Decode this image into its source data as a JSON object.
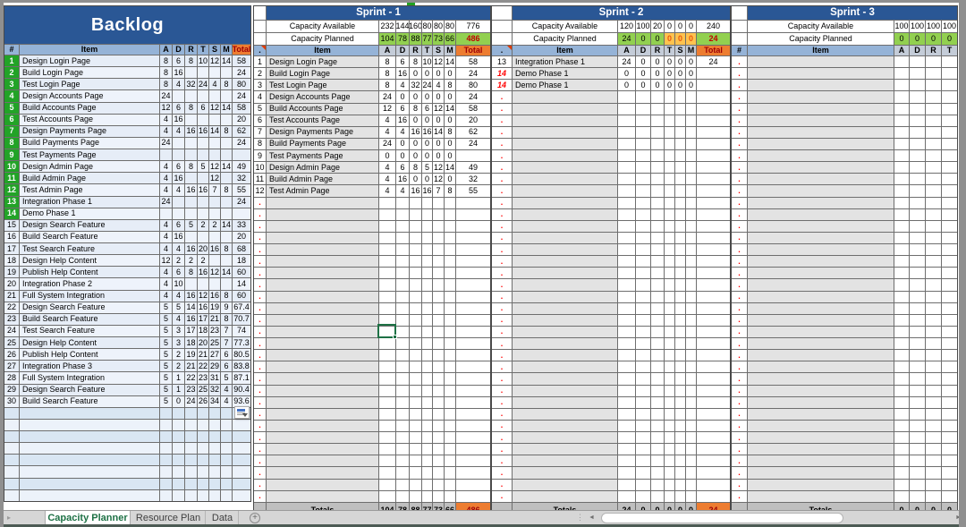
{
  "colors": {
    "header_blue": "#2a5795",
    "column_header_blue": "#95b3d7",
    "total_orange": "#ed7d31",
    "planned_green": "#92d050",
    "warning_amber": "#ffc34f",
    "row_number_green": "#22a327",
    "selection_green": "#1e7145",
    "dot_red": "#ff0000",
    "totals_grey": "#bfbfbf"
  },
  "backlog": {
    "title": "Backlog",
    "columns": [
      "#",
      "Item",
      "A",
      "D",
      "R",
      "T",
      "S",
      "M",
      "Total"
    ],
    "rows": [
      {
        "n": "1",
        "item": "Design Login Page",
        "v": [
          "8",
          "6",
          "8",
          "10",
          "12",
          "14"
        ],
        "t": "58",
        "g": true
      },
      {
        "n": "2",
        "item": "Build Login Page",
        "v": [
          "8",
          "16",
          "",
          "",
          "",
          ""
        ],
        "t": "24",
        "g": true
      },
      {
        "n": "3",
        "item": "Test Login Page",
        "v": [
          "8",
          "4",
          "32",
          "24",
          "4",
          "8"
        ],
        "t": "80",
        "g": true
      },
      {
        "n": "4",
        "item": "Design Accounts Page",
        "v": [
          "24",
          "",
          "",
          "",
          "",
          ""
        ],
        "t": "24",
        "g": true
      },
      {
        "n": "5",
        "item": "Build Accounts Page",
        "v": [
          "12",
          "6",
          "8",
          "6",
          "12",
          "14"
        ],
        "t": "58",
        "g": true
      },
      {
        "n": "6",
        "item": "Test Accounts Page",
        "v": [
          "4",
          "16",
          "",
          "",
          "",
          ""
        ],
        "t": "20",
        "g": true
      },
      {
        "n": "7",
        "item": "Design Payments Page",
        "v": [
          "4",
          "4",
          "16",
          "16",
          "14",
          "8"
        ],
        "t": "62",
        "g": true
      },
      {
        "n": "8",
        "item": "Build Payments Page",
        "v": [
          "24",
          "",
          "",
          "",
          "",
          ""
        ],
        "t": "24",
        "g": true
      },
      {
        "n": "9",
        "item": "Test Payments Page",
        "v": [
          "",
          "",
          "",
          "",
          "",
          ""
        ],
        "t": "",
        "g": true
      },
      {
        "n": "10",
        "item": "Design Admin Page",
        "v": [
          "4",
          "6",
          "8",
          "5",
          "12",
          "14"
        ],
        "t": "49",
        "g": true
      },
      {
        "n": "11",
        "item": "Build Admin Page",
        "v": [
          "4",
          "16",
          "",
          "",
          "12",
          ""
        ],
        "t": "32",
        "g": true
      },
      {
        "n": "12",
        "item": "Test Admin Page",
        "v": [
          "4",
          "4",
          "16",
          "16",
          "7",
          "8"
        ],
        "t": "55",
        "g": true
      },
      {
        "n": "13",
        "item": "Integration Phase 1",
        "v": [
          "24",
          "",
          "",
          "",
          "",
          ""
        ],
        "t": "24",
        "g": true
      },
      {
        "n": "14",
        "item": "Demo Phase 1",
        "v": [
          "",
          "",
          "",
          "",
          "",
          ""
        ],
        "t": "",
        "g": true
      },
      {
        "n": "15",
        "item": "Design Search Feature",
        "v": [
          "4",
          "6",
          "5",
          "2",
          "2",
          "14"
        ],
        "t": "33"
      },
      {
        "n": "16",
        "item": "Build Search Feature",
        "v": [
          "4",
          "16",
          "",
          "",
          "",
          ""
        ],
        "t": "20"
      },
      {
        "n": "17",
        "item": "Test Search Feature",
        "v": [
          "4",
          "4",
          "16",
          "20",
          "16",
          "8"
        ],
        "t": "68"
      },
      {
        "n": "18",
        "item": "Design Help Content",
        "v": [
          "12",
          "2",
          "2",
          "2",
          "",
          ""
        ],
        "t": "18"
      },
      {
        "n": "19",
        "item": "Publish Help Content",
        "v": [
          "4",
          "6",
          "8",
          "16",
          "12",
          "14"
        ],
        "t": "60"
      },
      {
        "n": "20",
        "item": "Integration Phase 2",
        "v": [
          "4",
          "10",
          "",
          "",
          "",
          ""
        ],
        "t": "14"
      },
      {
        "n": "21",
        "item": "Full System Integration",
        "v": [
          "4",
          "4",
          "16",
          "12",
          "16",
          "8"
        ],
        "t": "60"
      },
      {
        "n": "22",
        "item": "Design Search Feature",
        "v": [
          "5",
          "5",
          "14",
          "16",
          "19",
          "9"
        ],
        "t": "67.4"
      },
      {
        "n": "23",
        "item": "Build Search Feature",
        "v": [
          "5",
          "4",
          "16",
          "17",
          "21",
          "8"
        ],
        "t": "70.7"
      },
      {
        "n": "24",
        "item": "Test Search Feature",
        "v": [
          "5",
          "3",
          "17",
          "18",
          "23",
          "7"
        ],
        "t": "74"
      },
      {
        "n": "25",
        "item": "Design Help Content",
        "v": [
          "5",
          "3",
          "18",
          "20",
          "25",
          "7"
        ],
        "t": "77.3"
      },
      {
        "n": "26",
        "item": "Publish Help Content",
        "v": [
          "5",
          "2",
          "19",
          "21",
          "27",
          "6"
        ],
        "t": "80.5"
      },
      {
        "n": "27",
        "item": "Integration Phase 3",
        "v": [
          "5",
          "2",
          "21",
          "22",
          "29",
          "6"
        ],
        "t": "83.8"
      },
      {
        "n": "28",
        "item": "Full System Integration",
        "v": [
          "5",
          "1",
          "22",
          "23",
          "31",
          "5"
        ],
        "t": "87.1"
      },
      {
        "n": "29",
        "item": "Design Search Feature",
        "v": [
          "5",
          "1",
          "23",
          "25",
          "32",
          "4"
        ],
        "t": "90.4"
      },
      {
        "n": "30",
        "item": "Build Search Feature",
        "v": [
          "5",
          "0",
          "24",
          "26",
          "34",
          "4"
        ],
        "t": "93.6"
      }
    ],
    "empty_rows": 8
  },
  "dot_char": ".",
  "sprints": [
    {
      "title": "Sprint - 1",
      "num_header": ".",
      "has_note_marker": true,
      "item_header": "Item",
      "columns": [
        "A",
        "D",
        "R",
        "T",
        "S",
        "M"
      ],
      "total_header": "Total",
      "capacity_available_label": "Capacity Available",
      "capacity_planned_label": "Capacity Planned",
      "capacity_available": [
        "232",
        "144",
        "160",
        "80",
        "80",
        "80"
      ],
      "capacity_available_total": "776",
      "capacity_planned": [
        "104",
        "78",
        "88",
        "77",
        "73",
        "66"
      ],
      "capacity_planned_styles": [
        "g",
        "g",
        "g",
        "g",
        "g",
        "g"
      ],
      "capacity_planned_total": "486",
      "rows": [
        {
          "n": "1",
          "item": "Design Login Page",
          "v": [
            "8",
            "6",
            "8",
            "10",
            "12",
            "14"
          ],
          "t": "58"
        },
        {
          "n": "2",
          "item": "Build Login Page",
          "v": [
            "8",
            "16",
            "0",
            "0",
            "0",
            "0"
          ],
          "t": "24"
        },
        {
          "n": "3",
          "item": "Test Login Page",
          "v": [
            "8",
            "4",
            "32",
            "24",
            "4",
            "8"
          ],
          "t": "80"
        },
        {
          "n": "4",
          "item": "Design Accounts Page",
          "v": [
            "24",
            "0",
            "0",
            "0",
            "0",
            "0"
          ],
          "t": "24"
        },
        {
          "n": "5",
          "item": "Build Accounts Page",
          "v": [
            "12",
            "6",
            "8",
            "6",
            "12",
            "14"
          ],
          "t": "58"
        },
        {
          "n": "6",
          "item": "Test Accounts Page",
          "v": [
            "4",
            "16",
            "0",
            "0",
            "0",
            "0"
          ],
          "t": "20"
        },
        {
          "n": "7",
          "item": "Design Payments Page",
          "v": [
            "4",
            "4",
            "16",
            "16",
            "14",
            "8"
          ],
          "t": "62"
        },
        {
          "n": "8",
          "item": "Build Payments Page",
          "v": [
            "24",
            "0",
            "0",
            "0",
            "0",
            "0"
          ],
          "t": "24"
        },
        {
          "n": "9",
          "item": "Test Payments Page",
          "v": [
            "0",
            "0",
            "0",
            "0",
            "0",
            "0"
          ],
          "t": ""
        },
        {
          "n": "10",
          "item": "Design Admin Page",
          "v": [
            "4",
            "6",
            "8",
            "5",
            "12",
            "14"
          ],
          "t": "49"
        },
        {
          "n": "11",
          "item": "Build Admin Page",
          "v": [
            "4",
            "16",
            "0",
            "0",
            "12",
            "0"
          ],
          "t": "32"
        },
        {
          "n": "12",
          "item": "Test Admin Page",
          "v": [
            "4",
            "4",
            "16",
            "16",
            "7",
            "8"
          ],
          "t": "55"
        }
      ],
      "dot_rows": 26,
      "totals_label": "Totals",
      "totals": [
        "104",
        "78",
        "88",
        "77",
        "73",
        "66"
      ],
      "totals_total": "486"
    },
    {
      "title": "Sprint - 2",
      "num_header": ".",
      "has_note_marker": true,
      "item_header": "Item",
      "columns": [
        "A",
        "D",
        "R",
        "T",
        "S",
        "M"
      ],
      "total_header": "Total",
      "capacity_available_label": "Capacity Available",
      "capacity_planned_label": "Capacity Planned",
      "capacity_available": [
        "120",
        "100",
        "20",
        "0",
        "0",
        "0"
      ],
      "capacity_available_total": "240",
      "capacity_planned": [
        "24",
        "0",
        "0",
        "0",
        "0",
        "0"
      ],
      "capacity_planned_styles": [
        "g",
        "g",
        "g",
        "a",
        "a",
        "a"
      ],
      "capacity_planned_total": "24",
      "rows": [
        {
          "n": "13",
          "item": "Integration Phase 1",
          "v": [
            "24",
            "0",
            "0",
            "0",
            "0",
            "0"
          ],
          "t": "24"
        },
        {
          "n": "14",
          "item": "Demo Phase 1",
          "v": [
            "0",
            "0",
            "0",
            "0",
            "0",
            "0"
          ],
          "t": "",
          "red": true
        },
        {
          "n": "14",
          "item": "Demo Phase 1",
          "v": [
            "0",
            "0",
            "0",
            "0",
            "0",
            "0"
          ],
          "t": "",
          "red": true
        }
      ],
      "dot_rows": 35,
      "totals_label": "Totals",
      "totals": [
        "24",
        "0",
        "0",
        "0",
        "0",
        "0"
      ],
      "totals_total": "24"
    },
    {
      "title": "Sprint - 3",
      "num_header": "#",
      "has_note_marker": false,
      "item_header": "Item",
      "columns": [
        "A",
        "D",
        "R",
        "T"
      ],
      "capacity_available_label": "Capacity Available",
      "capacity_planned_label": "Capacity Planned",
      "capacity_available": [
        "100",
        "100",
        "100",
        "100"
      ],
      "capacity_planned": [
        "0",
        "0",
        "0",
        "0"
      ],
      "capacity_planned_styles": [
        "g",
        "g",
        "g",
        "g"
      ],
      "rows": [],
      "dot_rows": 38,
      "totals_label": "Totals",
      "totals": [
        "0",
        "0",
        "0",
        "0"
      ]
    }
  ],
  "tab_bar": {
    "tabs": [
      {
        "label": "Capacity Planner",
        "active": true
      },
      {
        "label": "Resource Plan",
        "active": false
      },
      {
        "label": "Data",
        "active": false
      }
    ]
  },
  "icons": {
    "tab_scroll": "▸",
    "add_sheet": "+",
    "splitter": "⋮",
    "scroll_left": "◄",
    "scroll_right": "►"
  }
}
